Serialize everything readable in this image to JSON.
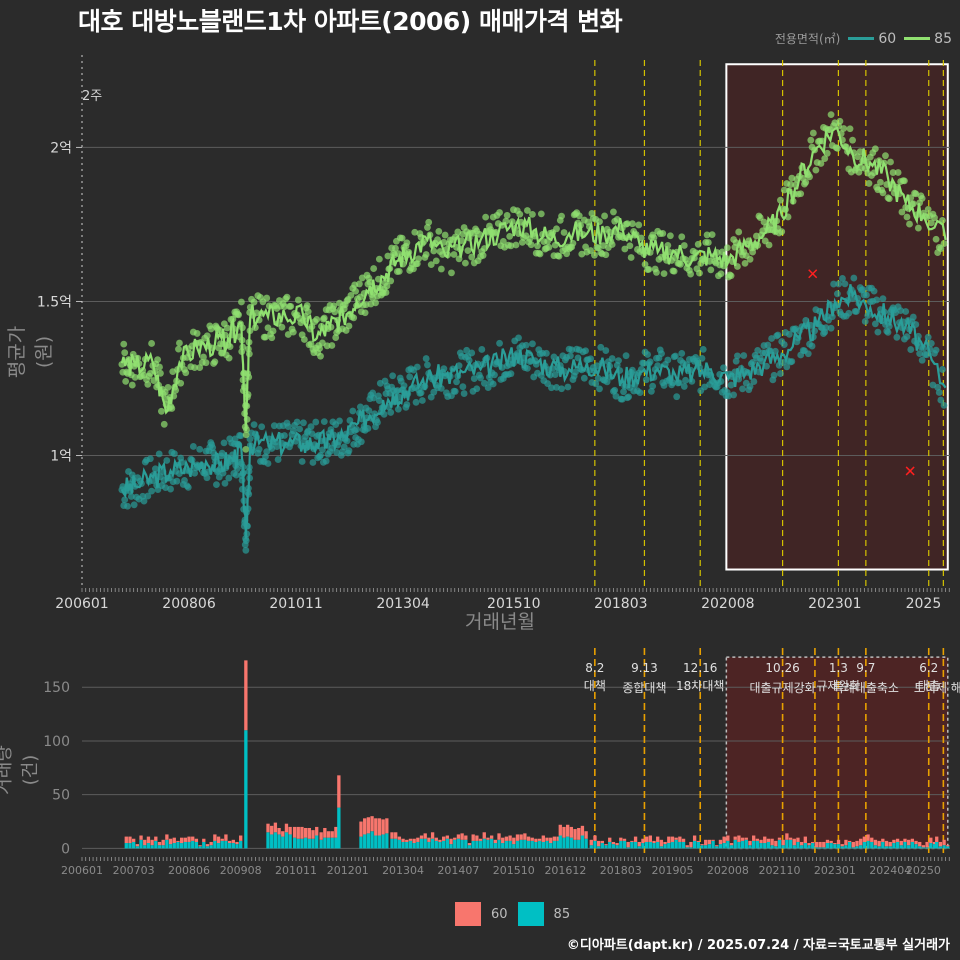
{
  "title": "대호 대방노블랜드1차 아파트(2006) 매매가격 변화",
  "credit": "©디아파트(dapt.kr) / 2025.07.24 / 자료=국토교통부 실거래가",
  "legend_top": {
    "title": "전용면적(㎡)",
    "items": [
      {
        "label": "60",
        "color": "#2a9d98"
      },
      {
        "label": "85",
        "color": "#90e070"
      }
    ]
  },
  "legend_bottom": {
    "items": [
      {
        "label": "60",
        "color": "#f8766d"
      },
      {
        "label": "85",
        "color": "#00bfc4"
      }
    ]
  },
  "chart_data": [
    {
      "type": "line",
      "title": "대호 대방노블랜드1차 아파트(2006) 매매가격 변화",
      "xlabel": "거래년월",
      "ylabel": "평균가(원)",
      "x_ticks": [
        "200601",
        "200806",
        "201011",
        "201304",
        "201510",
        "201803",
        "202008",
        "202301",
        "2025"
      ],
      "y_ticks": [
        {
          "value": 1.0,
          "label": "1억"
        },
        {
          "value": 1.5,
          "label": "1.5억"
        },
        {
          "value": 2.0,
          "label": "2억"
        }
      ],
      "ylim": [
        0.57,
        2.3
      ],
      "xlim": [
        2006.0,
        2025.6
      ],
      "grid": true,
      "annotation": "2주",
      "highlight_box": {
        "x_from": 2020.55,
        "x_to": 2025.55,
        "y_from": 0.63,
        "y_to": 2.27
      },
      "policy_lines": [
        2017.58,
        2018.7,
        2019.96,
        2021.82,
        2023.08,
        2023.7,
        2025.12,
        2025.45
      ],
      "outliers": [
        {
          "x": 2022.5,
          "y": 1.59
        },
        {
          "x": 2024.7,
          "y": 0.95
        }
      ],
      "series": [
        {
          "name": "60",
          "color": "#2a9d98",
          "x": [
            2006.9,
            2007.2,
            2007.6,
            2008.0,
            2008.4,
            2008.8,
            2009.1,
            2009.4,
            2009.6,
            2009.7,
            2009.8,
            2010.2,
            2010.6,
            2011.0,
            2011.3,
            2011.6,
            2011.9,
            2012.2,
            2012.5,
            2012.8,
            2013.1,
            2013.4,
            2013.8,
            2014.2,
            2014.6,
            2015.0,
            2015.4,
            2015.8,
            2016.2,
            2016.6,
            2017.0,
            2017.4,
            2017.8,
            2018.2,
            2018.6,
            2019.0,
            2019.4,
            2019.8,
            2020.2,
            2020.6,
            2021.0,
            2021.4,
            2021.8,
            2022.2,
            2022.6,
            2023.0,
            2023.4,
            2023.8,
            2024.2,
            2024.6,
            2025.0,
            2025.5
          ],
          "y": [
            0.89,
            0.9,
            0.93,
            0.95,
            0.96,
            0.98,
            0.97,
            0.99,
            1.02,
            0.73,
            1.04,
            1.04,
            1.04,
            1.04,
            1.04,
            1.05,
            1.06,
            1.1,
            1.13,
            1.18,
            1.2,
            1.22,
            1.25,
            1.26,
            1.27,
            1.28,
            1.3,
            1.33,
            1.31,
            1.29,
            1.28,
            1.3,
            1.28,
            1.25,
            1.27,
            1.28,
            1.26,
            1.27,
            1.28,
            1.25,
            1.27,
            1.3,
            1.33,
            1.38,
            1.42,
            1.5,
            1.52,
            1.48,
            1.45,
            1.42,
            1.35,
            1.22
          ]
        },
        {
          "name": "85",
          "color": "#90e070",
          "x": [
            2006.9,
            2007.2,
            2007.6,
            2007.9,
            2008.2,
            2008.6,
            2009.0,
            2009.3,
            2009.6,
            2009.7,
            2009.8,
            2010.2,
            2010.6,
            2011.0,
            2011.3,
            2011.6,
            2011.9,
            2012.2,
            2012.5,
            2012.8,
            2013.1,
            2013.4,
            2013.8,
            2014.2,
            2014.6,
            2015.0,
            2015.4,
            2015.8,
            2016.2,
            2016.6,
            2017.0,
            2017.4,
            2017.8,
            2018.2,
            2018.6,
            2019.0,
            2019.4,
            2019.8,
            2020.2,
            2020.6,
            2021.0,
            2021.4,
            2021.8,
            2022.2,
            2022.6,
            2023.0,
            2023.4,
            2023.8,
            2024.2,
            2024.6,
            2025.0,
            2025.5
          ],
          "y": [
            1.3,
            1.29,
            1.3,
            1.14,
            1.3,
            1.35,
            1.36,
            1.38,
            1.43,
            1.08,
            1.45,
            1.45,
            1.45,
            1.45,
            1.38,
            1.42,
            1.45,
            1.5,
            1.55,
            1.58,
            1.63,
            1.66,
            1.7,
            1.65,
            1.68,
            1.7,
            1.72,
            1.75,
            1.73,
            1.7,
            1.72,
            1.72,
            1.72,
            1.74,
            1.68,
            1.66,
            1.66,
            1.64,
            1.65,
            1.63,
            1.68,
            1.72,
            1.78,
            1.9,
            2.0,
            2.06,
            1.98,
            1.95,
            1.9,
            1.82,
            1.78,
            1.7
          ]
        }
      ]
    },
    {
      "type": "bar",
      "xlabel": "",
      "ylabel": "거래량(건)",
      "x_ticks": [
        "200601",
        "200703",
        "200806",
        "200908",
        "201011",
        "201201",
        "201304",
        "201407",
        "201510",
        "201612",
        "201803",
        "201905",
        "202008",
        "202110",
        "202301",
        "202404",
        "20250"
      ],
      "y_ticks": [
        0,
        50,
        100,
        150
      ],
      "ylim": [
        -8,
        180
      ],
      "xlim": [
        2006.0,
        2025.6
      ],
      "stacked": true,
      "highlight_box": {
        "x_from": 2020.55,
        "x_to": 2025.55,
        "y_from": 0,
        "y_to": 178
      },
      "policy_lines": [
        2017.58,
        2018.7,
        2019.96,
        2021.82,
        2022.55,
        2023.08,
        2023.7,
        2025.12,
        2025.45
      ],
      "policy_labels": [
        {
          "x": 2017.58,
          "date": "8.2",
          "name": "대책"
        },
        {
          "x": 2018.7,
          "date": "9.13",
          "name": "종합대책"
        },
        {
          "x": 2019.96,
          "date": "12.16",
          "name": "18차대책"
        },
        {
          "x": 2021.82,
          "date": "10.26",
          "name": "대출규제강화"
        },
        {
          "x": 2023.08,
          "date": "1.3",
          "name": "규제완화"
        },
        {
          "x": 2023.7,
          "date": "9.7",
          "name": "특례대출축소"
        },
        {
          "x": 2025.12,
          "date": "6.2",
          "name": "대출"
        },
        {
          "x": 2025.45,
          "date": "",
          "name": "토허제 해제"
        }
      ],
      "series": [
        {
          "name": "60",
          "color": "#f8766d",
          "x": [
            2007.0,
            2008.0,
            2009.0,
            2009.7,
            2010.2,
            2010.8,
            2011.4,
            2011.8,
            2012.3,
            2013.0,
            2014.0,
            2015.0,
            2016.0,
            2016.8,
            2017.5,
            2018.5,
            2019.5,
            2020.5,
            2021.5,
            2022.5,
            2023.5,
            2024.5,
            2025.3
          ],
          "values": [
            3,
            2,
            3,
            65,
            6,
            8,
            7,
            30,
            14,
            3,
            3,
            3,
            3,
            8,
            2,
            3,
            2,
            3,
            3,
            2,
            3,
            3,
            2
          ]
        },
        {
          "name": "85",
          "color": "#00bfc4",
          "x": [
            2007.0,
            2008.0,
            2009.0,
            2009.7,
            2010.2,
            2010.8,
            2011.4,
            2011.8,
            2012.3,
            2013.0,
            2014.0,
            2015.0,
            2016.0,
            2016.8,
            2017.5,
            2018.5,
            2019.5,
            2020.5,
            2021.5,
            2022.5,
            2023.5,
            2024.5,
            2025.3
          ],
          "values": [
            4,
            3,
            5,
            110,
            12,
            10,
            9,
            38,
            12,
            6,
            5,
            5,
            5,
            9,
            3,
            4,
            3,
            4,
            4,
            2,
            3,
            3,
            3
          ]
        }
      ]
    }
  ]
}
